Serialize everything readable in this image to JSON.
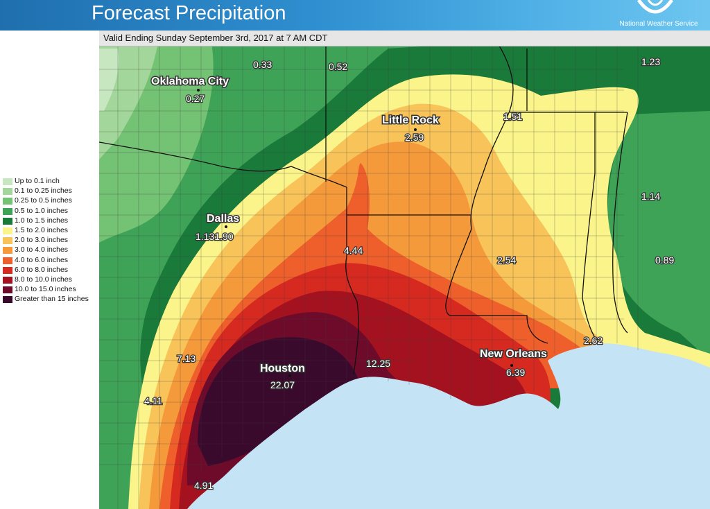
{
  "header": {
    "title": "Forecast Precipitation",
    "agency": "National Weather Service",
    "gradient_start": "#1f6fae",
    "gradient_end": "#6ec6f0"
  },
  "map": {
    "valid_text": "Valid Ending Sunday September 3rd, 2017 at 7 AM CDT",
    "water_color": "#c4e4f5",
    "cities": [
      {
        "name": "Oklahoma City",
        "value": "0.27"
      },
      {
        "name": "Dallas",
        "value": "1.131.90"
      },
      {
        "name": "Little Rock",
        "value": "2.59"
      },
      {
        "name": "Houston",
        "value": "22.07"
      },
      {
        "name": "New Orleans",
        "value": "6.39"
      }
    ],
    "values": [
      "0.33",
      "0.52",
      "1.23",
      "1.51",
      "1.14",
      "0.89",
      "4.44",
      "2.54",
      "2.62",
      "7.13",
      "12.25",
      "4.11",
      "4.91"
    ]
  },
  "legend": {
    "items": [
      {
        "label": "Up to 0.1 inch",
        "color": "#c7e7c0"
      },
      {
        "label": "0.1 to 0.25 inches",
        "color": "#a3d69a"
      },
      {
        "label": "0.25 to 0.5 inches",
        "color": "#74c274"
      },
      {
        "label": "0.5 to 1.0 inches",
        "color": "#3ea257"
      },
      {
        "label": "1.0 to 1.5 inches",
        "color": "#1a7a3a"
      },
      {
        "label": "1.5 to 2.0 inches",
        "color": "#fbf48a"
      },
      {
        "label": "2.0 to 3.0 inches",
        "color": "#f8c45a"
      },
      {
        "label": "3.0 to 4.0 inches",
        "color": "#f59a3b"
      },
      {
        "label": "4.0 to 6.0 inches",
        "color": "#ee5f2b"
      },
      {
        "label": "6.0 to 8.0 inches",
        "color": "#d62a21"
      },
      {
        "label": "8.0 to 10.0 inches",
        "color": "#a4121f"
      },
      {
        "label": "10.0 to 15.0 inches",
        "color": "#6e0b2b"
      },
      {
        "label": "Greater than 15 inches",
        "color": "#3a0a2d"
      }
    ]
  }
}
